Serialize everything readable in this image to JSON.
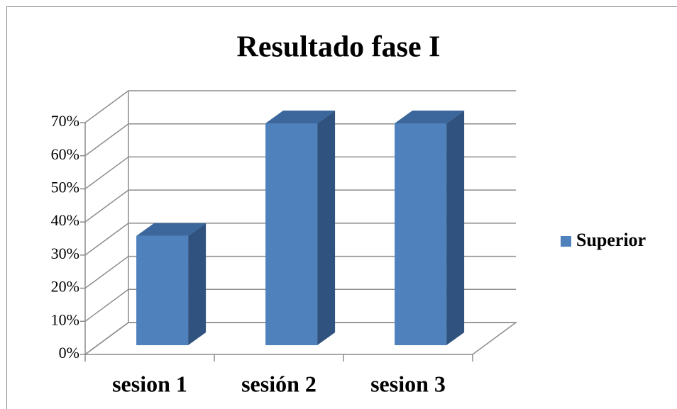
{
  "chart_data": {
    "type": "bar3d",
    "title": "Resultado fase I",
    "categories": [
      "sesion 1",
      "sesión 2",
      "sesion 3"
    ],
    "series": [
      {
        "name": "Superior",
        "color": "#4f81bd",
        "values": [
          33,
          67,
          67
        ]
      }
    ],
    "ylim": [
      0,
      70
    ],
    "yticks": [
      {
        "value": 0,
        "label": "0%"
      },
      {
        "value": 10,
        "label": "10%"
      },
      {
        "value": 20,
        "label": "20%"
      },
      {
        "value": 30,
        "label": "30%"
      },
      {
        "value": 40,
        "label": "40%"
      },
      {
        "value": 50,
        "label": "50%"
      },
      {
        "value": 60,
        "label": "60%"
      },
      {
        "value": 70,
        "label": "70%"
      }
    ],
    "grid": true,
    "legend": "right"
  }
}
